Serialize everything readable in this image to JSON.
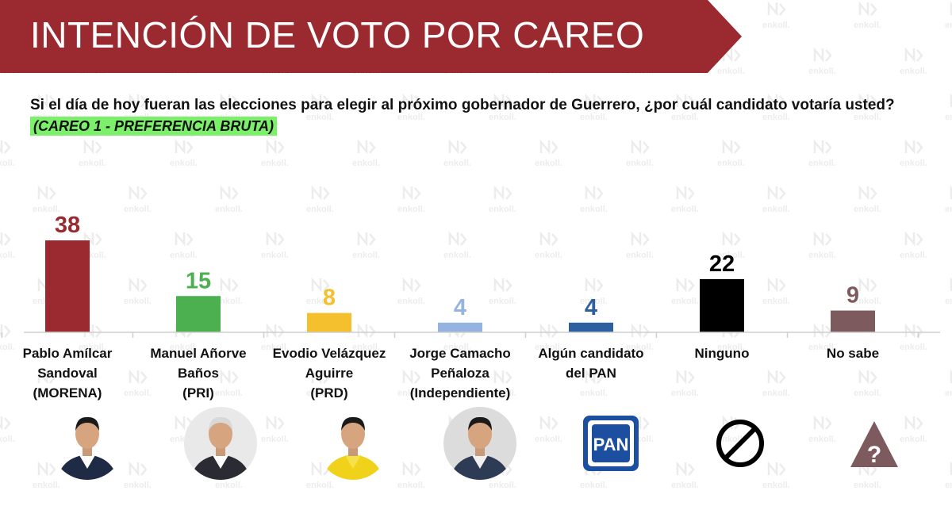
{
  "header": {
    "title": "INTENCIÓN DE VOTO POR CAREO",
    "banner_color": "#9a2a2f"
  },
  "watermark": {
    "text": "enkoll."
  },
  "question": "Si el día de hoy fueran las elecciones para elegir al próximo gobernador de Guerrero, ¿por cuál candidato votaría usted?",
  "subtitle": "(CAREO 1 - PREFERENCIA BRUTA)",
  "subtitle_highlight": "#7cf06a",
  "chart_data": {
    "type": "bar",
    "categories": [
      "Pablo Amílcar Sandoval (MORENA)",
      "Manuel Añorve Baños (PRI)",
      "Evodio Velázquez Aguirre (PRD)",
      "Jorge Camacho Peñaloza (Independiente)",
      "Algún candidato del PAN",
      "Ninguno",
      "No sabe"
    ],
    "category_lines": [
      [
        "Pablo Amílcar",
        "Sandoval",
        "(MORENA)"
      ],
      [
        "Manuel Añorve",
        "Baños",
        "(PRI)"
      ],
      [
        "Evodio Velázquez",
        "Aguirre",
        "(PRD)"
      ],
      [
        "Jorge Camacho",
        "Peñaloza",
        "(Independiente)"
      ],
      [
        "Algún candidato",
        "del PAN"
      ],
      [
        "Ninguno"
      ],
      [
        "No sabe"
      ]
    ],
    "values": [
      38,
      15,
      8,
      4,
      4,
      22,
      9
    ],
    "colors": [
      "#9a2a2f",
      "#4caf50",
      "#f5c02e",
      "#95b3e0",
      "#2e5f9e",
      "#000000",
      "#7d5a5e"
    ],
    "data_labels": [
      "38",
      "15",
      "8",
      "4",
      "4",
      "22",
      "9"
    ],
    "title": "",
    "xlabel": "",
    "ylabel": "",
    "ylim": [
      0,
      40
    ],
    "grid": false,
    "legend": "none"
  },
  "icons": [
    "candidate-photo-icon",
    "candidate-photo-icon",
    "candidate-photo-icon",
    "candidate-photo-icon",
    "pan-logo-icon",
    "prohibited-icon",
    "question-triangle-icon"
  ],
  "pan_logo_text": "PAN",
  "question_mark": "?"
}
